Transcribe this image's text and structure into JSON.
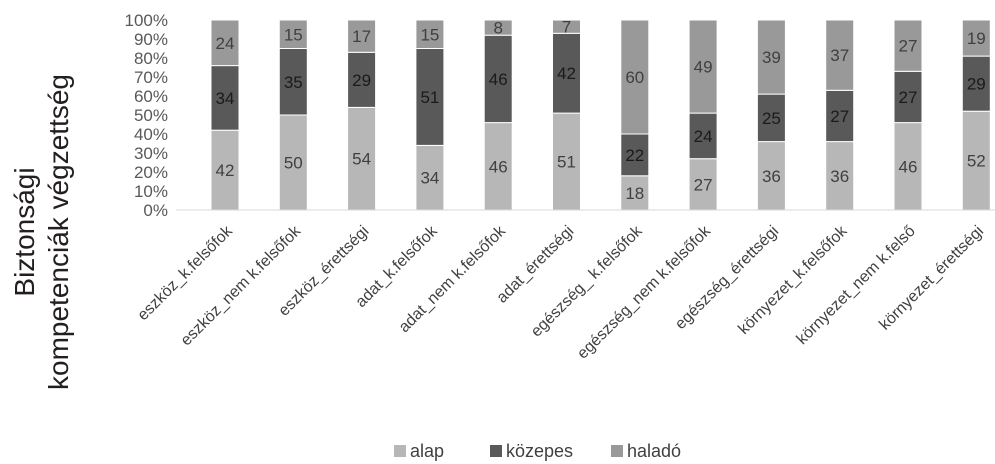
{
  "chart_data": {
    "type": "bar",
    "stacked": true,
    "percent": true,
    "ylabel_lines": [
      "Biztonsági",
      "kompetenciák végzettség"
    ],
    "ylim": [
      0,
      100
    ],
    "y_ticks": [
      "0%",
      "10%",
      "20%",
      "30%",
      "40%",
      "50%",
      "60%",
      "70%",
      "80%",
      "90%",
      "100%"
    ],
    "categories": [
      "eszköz_k.felsőfok",
      "eszköz_nem k.felsőfok",
      "eszköz_érettségi",
      "adat_k.felsőfok",
      "adat_nem k.felsőfok",
      "adat_érettségi",
      "egészség_ k.felsőfok",
      "egészség_nem k.felsőfok",
      "egészség_érettségi",
      "környezet_k.felsőfok",
      "környezet_nem k.felső",
      "környezet_érettségi"
    ],
    "series": [
      {
        "name": "alap",
        "color": "#b7b7b7",
        "label_color": "#404040",
        "values": [
          42,
          50,
          54,
          34,
          46,
          51,
          18,
          27,
          36,
          36,
          46,
          52
        ]
      },
      {
        "name": "közepes",
        "color": "#595959",
        "label_color": "#1a1a1a",
        "values": [
          34,
          35,
          29,
          51,
          46,
          42,
          22,
          24,
          25,
          27,
          27,
          29
        ]
      },
      {
        "name": "haladó",
        "color": "#999999",
        "label_color": "#404040",
        "values": [
          24,
          15,
          17,
          15,
          8,
          7,
          60,
          49,
          39,
          37,
          27,
          19
        ]
      }
    ],
    "grid": false,
    "legend_position": "bottom"
  }
}
